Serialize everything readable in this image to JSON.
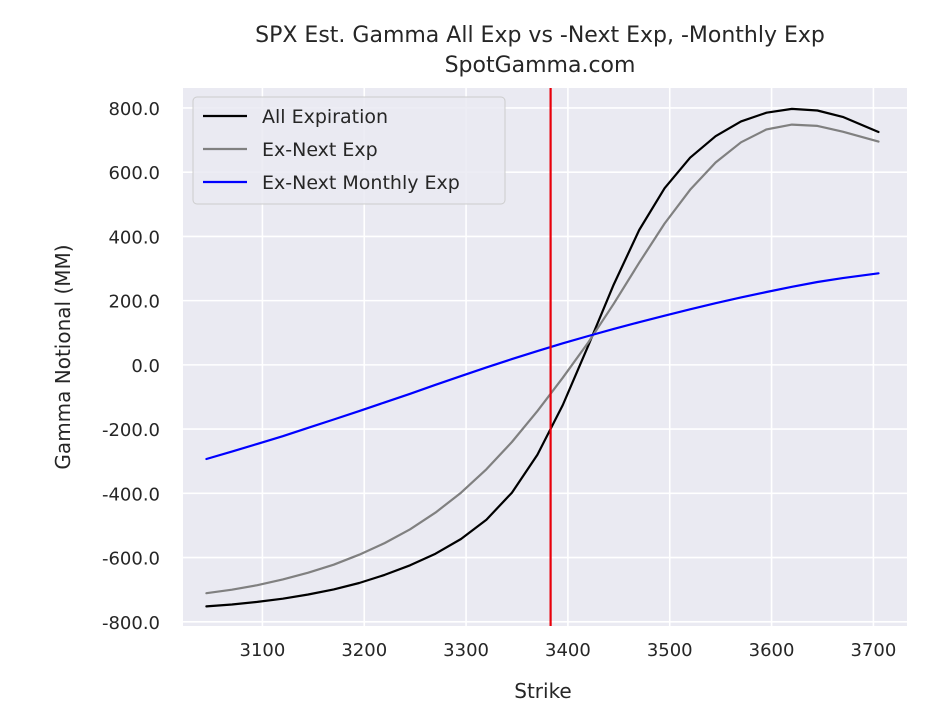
{
  "chart_data": {
    "type": "line",
    "title": "SPX Est. Gamma All Exp vs -Next Exp, -Monthly Exp",
    "subtitle": "SpotGamma.com",
    "xlabel": "Strike",
    "ylabel": "Gamma Notional (MM)",
    "xlim": [
      3022,
      3733
    ],
    "ylim": [
      -813,
      862
    ],
    "xticks": [
      3100,
      3200,
      3300,
      3400,
      3500,
      3600,
      3700
    ],
    "xtick_labels": [
      "3100",
      "3200",
      "3300",
      "3400",
      "3500",
      "3600",
      "3700"
    ],
    "yticks": [
      800,
      600,
      400,
      200,
      0,
      -200,
      -400,
      -600,
      -800
    ],
    "ytick_labels": [
      "800.0",
      "600.0",
      "400.0",
      "200.0",
      "0.0",
      "-200.0",
      "-400.0",
      "-600.0",
      "-800.0"
    ],
    "grid": true,
    "legend_position": "top-left",
    "vertical_line": {
      "x": 3383,
      "color": "#e8000b"
    },
    "x": [
      3045,
      3070,
      3095,
      3120,
      3145,
      3170,
      3195,
      3220,
      3245,
      3270,
      3295,
      3320,
      3345,
      3370,
      3395,
      3420,
      3445,
      3470,
      3495,
      3520,
      3545,
      3570,
      3595,
      3620,
      3645,
      3670,
      3705
    ],
    "series": [
      {
        "name": "All Expiration",
        "color": "#000000",
        "values": [
          -752,
          -746,
          -738,
          -728,
          -715,
          -699,
          -679,
          -654,
          -624,
          -588,
          -542,
          -482,
          -398,
          -280,
          -125,
          60,
          250,
          420,
          550,
          645,
          712,
          758,
          785,
          797,
          792,
          772,
          725
        ]
      },
      {
        "name": "Ex-Next Exp",
        "color": "#808080",
        "values": [
          -711,
          -700,
          -686,
          -668,
          -647,
          -622,
          -591,
          -555,
          -512,
          -460,
          -398,
          -325,
          -240,
          -144,
          -40,
          70,
          190,
          318,
          440,
          545,
          630,
          693,
          733,
          748,
          744,
          726,
          695
        ]
      },
      {
        "name": "Ex-Next Monthly Exp",
        "color": "#0000ff",
        "values": [
          -293,
          -270,
          -246,
          -222,
          -196,
          -170,
          -144,
          -117,
          -90,
          -62,
          -35,
          -8,
          18,
          43,
          67,
          90,
          112,
          133,
          153,
          173,
          192,
          210,
          227,
          243,
          258,
          270,
          285
        ]
      }
    ]
  }
}
